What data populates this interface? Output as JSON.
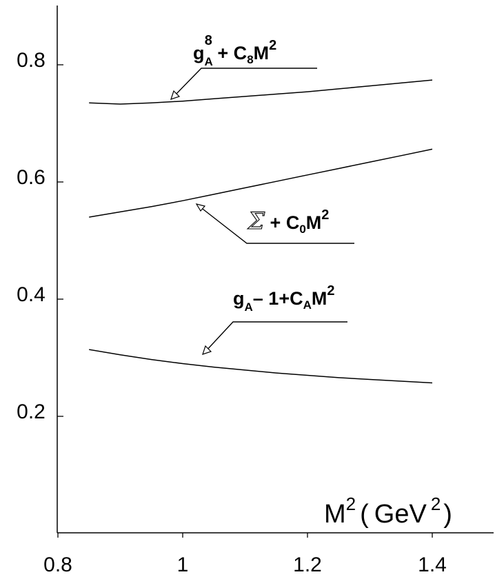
{
  "chart_data": {
    "type": "line",
    "xlabel": {
      "base": "M",
      "sup1": "2",
      "paren_open": "(",
      "unit": "GeV",
      "sup2": "2",
      "paren_close": ")"
    },
    "ylabel": "",
    "xlim": [
      0.7,
      1.5
    ],
    "ylim": [
      0.0,
      0.9
    ],
    "x_ticks": [
      "0.8",
      "1",
      "1.2",
      "1.4"
    ],
    "x_tick_values": [
      0.8,
      1.0,
      1.2,
      1.4
    ],
    "y_ticks": [
      "0.2",
      "0.4",
      "0.6",
      "0.8"
    ],
    "y_tick_values": [
      0.2,
      0.4,
      0.6,
      0.8
    ],
    "grid": false,
    "series": [
      {
        "key": "g8",
        "x": [
          0.85,
          0.9,
          0.95,
          1.0,
          1.05,
          1.1,
          1.15,
          1.2,
          1.25,
          1.3,
          1.35,
          1.4
        ],
        "y": [
          0.735,
          0.733,
          0.735,
          0.738,
          0.742,
          0.746,
          0.75,
          0.754,
          0.759,
          0.764,
          0.769,
          0.774
        ]
      },
      {
        "key": "sigma",
        "x": [
          0.85,
          0.9,
          0.95,
          1.0,
          1.05,
          1.1,
          1.15,
          1.2,
          1.25,
          1.3,
          1.35,
          1.4
        ],
        "y": [
          0.54,
          0.549,
          0.558,
          0.568,
          0.579,
          0.59,
          0.601,
          0.612,
          0.623,
          0.634,
          0.645,
          0.656
        ]
      },
      {
        "key": "gA",
        "x": [
          0.85,
          0.9,
          0.95,
          1.0,
          1.05,
          1.1,
          1.15,
          1.2,
          1.25,
          1.3,
          1.35,
          1.4
        ],
        "y": [
          0.314,
          0.305,
          0.297,
          0.29,
          0.284,
          0.279,
          0.274,
          0.27,
          0.266,
          0.263,
          0.26,
          0.257
        ]
      }
    ],
    "annotations": [
      {
        "key": "g8",
        "parts": [
          "g",
          "A",
          "8",
          " + C",
          "8",
          "M",
          "2"
        ]
      },
      {
        "key": "sigma",
        "parts": [
          "Σ",
          " + C",
          "0",
          "M",
          "2"
        ]
      },
      {
        "key": "gA",
        "parts": [
          "g",
          "A",
          "– 1+C",
          "A",
          "M",
          "2"
        ]
      }
    ]
  }
}
